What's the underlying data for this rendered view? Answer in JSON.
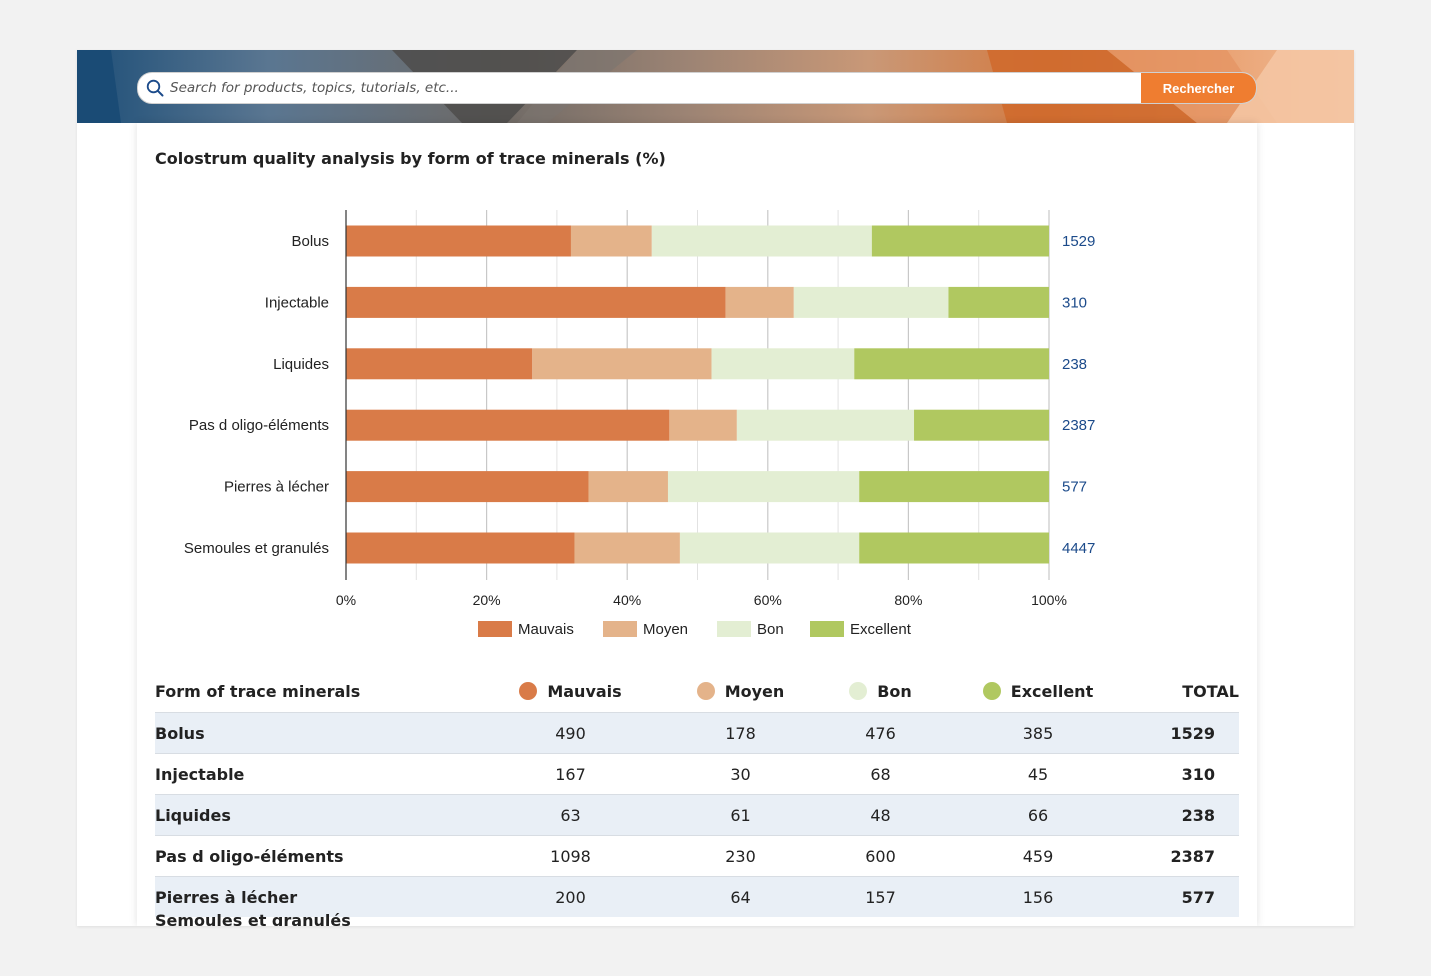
{
  "search": {
    "placeholder": "Search for products, topics, tutorials, etc...",
    "button_label": "Rechercher"
  },
  "page": {
    "title": "Colostrum quality analysis by form of trace minerals (%)"
  },
  "colors": {
    "Mauvais": "#d97b48",
    "Moyen": "#e4b38a",
    "Bon": "#e3eed3",
    "Excellent": "#b0c860",
    "total_label": "#1b4a8a",
    "accent": "#ef7d30"
  },
  "chart_data": {
    "type": "bar",
    "orientation": "horizontal",
    "stacked": "percent",
    "categories": [
      "Bolus",
      "Injectable",
      "Liquides",
      "Pas d oligo-éléments",
      "Pierres à lécher",
      "Semoules et granulés"
    ],
    "series": [
      {
        "name": "Mauvais",
        "values": [
          32,
          54,
          26.5,
          46,
          34.5,
          32.5
        ]
      },
      {
        "name": "Moyen",
        "values": [
          11.5,
          9.7,
          25.5,
          9.6,
          11.3,
          15
        ]
      },
      {
        "name": "Bon",
        "values": [
          31.3,
          22,
          20.3,
          25.2,
          27.2,
          25.5
        ]
      },
      {
        "name": "Excellent",
        "values": [
          25.2,
          14.3,
          27.7,
          19.2,
          27,
          27
        ]
      }
    ],
    "totals": [
      "1529",
      "310",
      "238",
      "2387",
      "577",
      "4447"
    ],
    "xlim": [
      0,
      100
    ],
    "xticks": [
      "0%",
      "20%",
      "40%",
      "60%",
      "80%",
      "100%"
    ],
    "grid": true,
    "legend": "bottom"
  },
  "table": {
    "headers": [
      "Form of trace minerals",
      "Mauvais",
      "Moyen",
      "Bon",
      "Excellent",
      "TOTAL"
    ],
    "rows": [
      {
        "name": "Bolus",
        "mauvais": "490",
        "moyen": "178",
        "bon": "476",
        "excellent": "385",
        "total": "1529"
      },
      {
        "name": "Injectable",
        "mauvais": "167",
        "moyen": "30",
        "bon": "68",
        "excellent": "45",
        "total": "310"
      },
      {
        "name": "Liquides",
        "mauvais": "63",
        "moyen": "61",
        "bon": "48",
        "excellent": "66",
        "total": "238"
      },
      {
        "name": "Pas d oligo-éléments",
        "mauvais": "1098",
        "moyen": "230",
        "bon": "600",
        "excellent": "459",
        "total": "2387"
      },
      {
        "name": "Pierres à lécher",
        "mauvais": "200",
        "moyen": "64",
        "bon": "157",
        "excellent": "156",
        "total": "577"
      }
    ],
    "partial_row_name": "Semoules et granulés"
  }
}
